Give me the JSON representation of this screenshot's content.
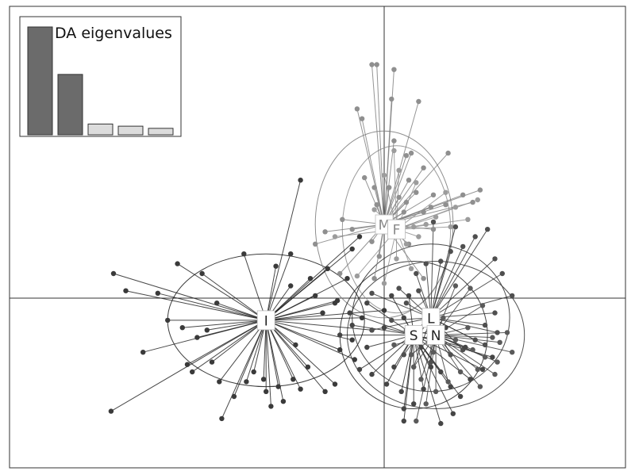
{
  "chart_data": {
    "type": "scatter",
    "subtype": "DAPC scatterplot with group centroids, spokes and inertia ellipses",
    "title": "",
    "xlabel": "",
    "ylabel": "",
    "xlim": [
      -1.55,
      1.0
    ],
    "ylim": [
      -0.75,
      1.15
    ],
    "axes_cross_at": [
      0,
      0
    ],
    "grid": false,
    "groups": [
      {
        "name": "I",
        "centroid": [
          -0.48,
          -0.09
        ],
        "ellipse_radii": [
          0.4,
          0.27
        ],
        "point_color": "#3a3a3a",
        "line_color": "#1a1a1a",
        "points": [
          [
            -1.1,
            0.1
          ],
          [
            -1.05,
            0.03
          ],
          [
            -0.92,
            0.02
          ],
          [
            -0.88,
            -0.09
          ],
          [
            -0.82,
            -0.12
          ],
          [
            -0.76,
            -0.16
          ],
          [
            -0.72,
            -0.13
          ],
          [
            -0.7,
            -0.26
          ],
          [
            -0.67,
            -0.34
          ],
          [
            -0.66,
            -0.49
          ],
          [
            -0.61,
            -0.4
          ],
          [
            -0.56,
            -0.34
          ],
          [
            -0.53,
            -0.3
          ],
          [
            -0.49,
            -0.33
          ],
          [
            -0.46,
            -0.44
          ],
          [
            -0.43,
            -0.36
          ],
          [
            -0.41,
            -0.42
          ],
          [
            -0.37,
            -0.33
          ],
          [
            -0.34,
            -0.37
          ],
          [
            -0.31,
            -0.28
          ],
          [
            -0.24,
            -0.38
          ],
          [
            -0.2,
            -0.35
          ],
          [
            -0.18,
            -0.21
          ],
          [
            -0.13,
            -0.17
          ],
          [
            -0.12,
            -0.25
          ],
          [
            -0.09,
            -0.08
          ],
          [
            -0.05,
            -0.13
          ],
          [
            0.0,
            -0.05
          ],
          [
            -0.38,
            0.18
          ],
          [
            -0.44,
            0.13
          ],
          [
            -0.38,
            0.05
          ],
          [
            -0.3,
            0.08
          ],
          [
            -0.28,
            0.01
          ],
          [
            -0.23,
            0.12
          ],
          [
            -0.2,
            -0.02
          ],
          [
            -0.15,
            0.08
          ],
          [
            -0.13,
            0.2
          ],
          [
            -0.1,
            0.25
          ],
          [
            -0.34,
            0.48
          ],
          [
            -0.57,
            0.18
          ],
          [
            -0.74,
            0.1
          ],
          [
            -0.84,
            0.14
          ],
          [
            -0.68,
            -0.02
          ],
          [
            -0.98,
            -0.22
          ],
          [
            -0.78,
            -0.3
          ],
          [
            -0.8,
            -0.27
          ],
          [
            -1.11,
            -0.46
          ],
          [
            -0.48,
            -0.38
          ],
          [
            -0.36,
            -0.19
          ],
          [
            -0.25,
            -0.06
          ],
          [
            -0.19,
            -0.01
          ]
        ]
      },
      {
        "name": "M",
        "centroid": [
          0.0,
          0.3
        ],
        "ellipse_radii": [
          0.28,
          0.38
        ],
        "point_color": "#8f8f8f",
        "line_color": "#7a7a7a",
        "points": [
          [
            -0.11,
            0.77
          ],
          [
            -0.09,
            0.73
          ],
          [
            -0.05,
            0.95
          ],
          [
            -0.03,
            0.95
          ],
          [
            0.04,
            0.93
          ],
          [
            0.03,
            0.81
          ],
          [
            0.14,
            0.8
          ],
          [
            0.04,
            0.64
          ],
          [
            0.09,
            0.58
          ],
          [
            0.11,
            0.59
          ],
          [
            0.16,
            0.53
          ],
          [
            0.1,
            0.48
          ],
          [
            0.08,
            0.35
          ],
          [
            0.13,
            0.43
          ],
          [
            -0.08,
            0.49
          ],
          [
            -0.04,
            0.45
          ],
          [
            -0.03,
            0.38
          ],
          [
            0.02,
            0.45
          ],
          [
            0.06,
            0.41
          ],
          [
            -0.13,
            0.28
          ],
          [
            -0.05,
            0.23
          ],
          [
            0.26,
            0.59
          ],
          [
            0.39,
            0.44
          ],
          [
            0.32,
            0.42
          ],
          [
            0.36,
            0.39
          ],
          [
            0.25,
            0.38
          ],
          [
            0.2,
            0.42
          ],
          [
            0.19,
            0.37
          ],
          [
            0.16,
            0.35
          ],
          [
            0.1,
            0.22
          ],
          [
            0.2,
            0.28
          ],
          [
            -0.04,
            0.08
          ],
          [
            -0.02,
            0.17
          ],
          [
            -0.18,
            0.1
          ],
          [
            -0.24,
            0.27
          ],
          [
            -0.28,
            0.22
          ],
          [
            -0.17,
            0.32
          ],
          [
            0.09,
            0.39
          ],
          [
            0.16,
            0.08
          ]
        ]
      },
      {
        "name": "F",
        "centroid": [
          0.05,
          0.28
        ],
        "ellipse_radii": [
          0.22,
          0.34
        ],
        "point_color": "#9c9c9c",
        "line_color": "#8c8c8c",
        "points": [
          [
            0.38,
            0.4
          ],
          [
            0.34,
            0.32
          ],
          [
            0.29,
            0.37
          ],
          [
            0.21,
            0.33
          ],
          [
            0.17,
            0.3
          ],
          [
            0.12,
            0.29
          ],
          [
            0.14,
            0.25
          ],
          [
            0.09,
            0.22
          ],
          [
            0.05,
            0.16
          ],
          [
            0.0,
            0.06
          ],
          [
            -0.11,
            0.09
          ],
          [
            -0.2,
            0.25
          ],
          [
            -0.04,
            0.36
          ],
          [
            0.0,
            0.5
          ],
          [
            0.04,
            0.6
          ],
          [
            0.06,
            0.52
          ],
          [
            0.13,
            0.47
          ],
          [
            0.25,
            0.43
          ],
          [
            0.27,
            0.29
          ],
          [
            0.11,
            0.12
          ]
        ]
      },
      {
        "name": "L",
        "centroid": [
          0.19,
          -0.08
        ],
        "ellipse_radii": [
          0.32,
          0.3
        ],
        "point_color": "#4f4f4f",
        "line_color": "#2a2a2a",
        "points": [
          [
            0.42,
            0.28
          ],
          [
            0.37,
            0.25
          ],
          [
            0.32,
            0.21
          ],
          [
            0.27,
            0.19
          ],
          [
            0.23,
            0.15
          ],
          [
            0.17,
            0.14
          ],
          [
            0.13,
            0.1
          ],
          [
            0.2,
            0.31
          ],
          [
            0.29,
            0.29
          ],
          [
            0.45,
            0.16
          ],
          [
            0.48,
            0.1
          ],
          [
            0.52,
            0.01
          ],
          [
            0.45,
            -0.06
          ],
          [
            0.41,
            -0.11
          ],
          [
            0.46,
            -0.14
          ],
          [
            0.41,
            -0.19
          ],
          [
            0.37,
            -0.17
          ],
          [
            0.32,
            -0.21
          ],
          [
            0.27,
            -0.23
          ],
          [
            0.19,
            -0.26
          ],
          [
            0.12,
            -0.28
          ],
          [
            0.08,
            -0.23
          ],
          [
            0.03,
            -0.09
          ],
          [
            0.09,
            -0.02
          ],
          [
            0.14,
            0.03
          ],
          [
            0.06,
            0.04
          ],
          [
            -0.05,
            0.02
          ],
          [
            -0.05,
            -0.13
          ]
        ]
      },
      {
        "name": "S",
        "centroid": [
          0.12,
          -0.15
        ],
        "ellipse_radii": [
          0.3,
          0.3
        ],
        "point_color": "#454545",
        "line_color": "#1e1e1e",
        "points": [
          [
            -0.07,
            -0.2
          ],
          [
            -0.1,
            -0.29
          ],
          [
            -0.05,
            -0.31
          ],
          [
            0.01,
            -0.35
          ],
          [
            0.04,
            -0.28
          ],
          [
            0.07,
            -0.38
          ],
          [
            0.08,
            -0.45
          ],
          [
            0.12,
            -0.43
          ],
          [
            0.16,
            -0.37
          ],
          [
            0.19,
            -0.28
          ],
          [
            0.23,
            -0.3
          ],
          [
            0.27,
            -0.36
          ],
          [
            0.31,
            -0.4
          ],
          [
            0.35,
            -0.33
          ],
          [
            0.4,
            -0.29
          ],
          [
            0.44,
            -0.24
          ],
          [
            -0.07,
            -0.02
          ],
          [
            -0.14,
            -0.06
          ],
          [
            -0.18,
            -0.15
          ],
          [
            -0.13,
            -0.11
          ],
          [
            0.0,
            -0.12
          ],
          [
            0.03,
            0.01
          ],
          [
            0.1,
            0.01
          ],
          [
            0.2,
            -0.05
          ],
          [
            0.25,
            -0.12
          ],
          [
            0.15,
            -0.2
          ],
          [
            0.08,
            -0.08
          ],
          [
            0.33,
            -0.2
          ],
          [
            0.08,
            -0.5
          ],
          [
            0.23,
            -0.51
          ],
          [
            0.28,
            -0.47
          ]
        ]
      },
      {
        "name": "N",
        "centroid": [
          0.21,
          -0.15
        ],
        "ellipse_radii": [
          0.36,
          0.3
        ],
        "point_color": "#5a5a5a",
        "line_color": "#333333",
        "points": [
          [
            0.5,
            -0.14
          ],
          [
            0.47,
            -0.18
          ],
          [
            0.44,
            -0.16
          ],
          [
            0.52,
            -0.22
          ],
          [
            0.46,
            -0.26
          ],
          [
            0.41,
            -0.24
          ],
          [
            0.36,
            -0.21
          ],
          [
            0.38,
            -0.29
          ],
          [
            0.31,
            -0.3
          ],
          [
            0.26,
            -0.34
          ],
          [
            0.21,
            -0.38
          ],
          [
            0.15,
            -0.33
          ],
          [
            0.12,
            -0.28
          ],
          [
            0.18,
            -0.18
          ],
          [
            0.24,
            -0.08
          ],
          [
            0.29,
            0.05
          ],
          [
            0.35,
            0.04
          ],
          [
            0.4,
            -0.03
          ],
          [
            0.34,
            -0.12
          ],
          [
            0.29,
            -0.17
          ],
          [
            0.11,
            -0.23
          ],
          [
            0.04,
            -0.19
          ],
          [
            0.09,
            -0.13
          ],
          [
            0.2,
            -0.22
          ],
          [
            0.39,
            -0.36
          ],
          [
            0.45,
            -0.31
          ],
          [
            0.17,
            -0.43
          ],
          [
            0.13,
            -0.5
          ]
        ]
      }
    ],
    "inset": {
      "title": "DA eigenvalues",
      "type": "bar",
      "values": [
        1.0,
        0.56,
        0.1,
        0.08,
        0.06
      ],
      "retained": 2,
      "colors": {
        "retained": "#6b6b6b",
        "other": "#dcdcdc"
      }
    }
  }
}
